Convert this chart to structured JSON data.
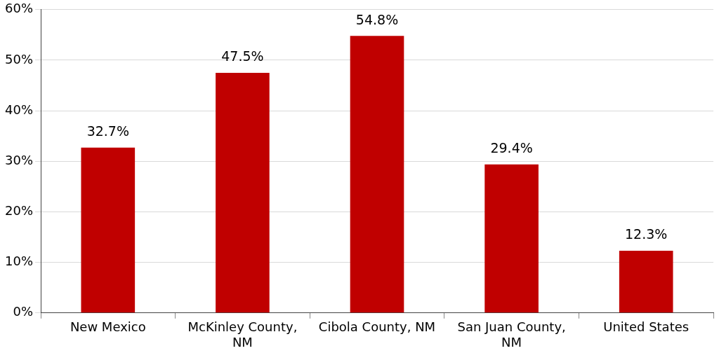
{
  "chart_data": {
    "type": "bar",
    "categories": [
      "New Mexico",
      "McKinley County, NM",
      "Cibola County, NM",
      "San Juan County, NM",
      "United States"
    ],
    "values": [
      32.7,
      47.5,
      54.8,
      29.4,
      12.3
    ],
    "value_labels": [
      "32.7%",
      "47.5%",
      "54.8%",
      "29.4%",
      "12.3%"
    ],
    "color": "#c00000",
    "ylim": [
      0,
      60
    ],
    "yticks": [
      {
        "value": 0,
        "label": "0%"
      },
      {
        "value": 10,
        "label": "10%"
      },
      {
        "value": 20,
        "label": "20%"
      },
      {
        "value": 30,
        "label": "30%"
      },
      {
        "value": 40,
        "label": "40%"
      },
      {
        "value": 50,
        "label": "50%"
      },
      {
        "value": 60,
        "label": "60%"
      }
    ],
    "grid": "y"
  }
}
